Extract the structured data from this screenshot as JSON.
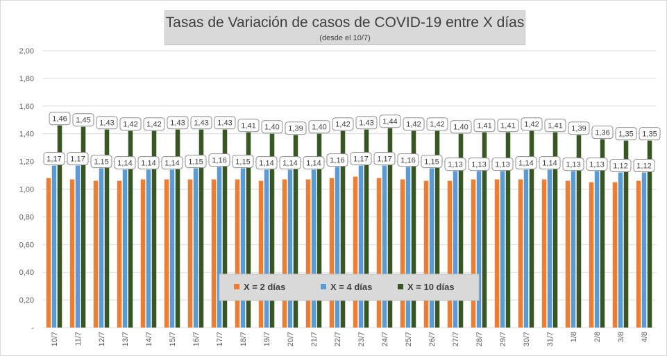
{
  "chart_data": {
    "type": "bar",
    "title": "Tasas de Variación de casos de COVID-19 entre X días",
    "subtitle": "(desde el 10/7)",
    "categories": [
      "10/7",
      "11/7",
      "12/7",
      "13/7",
      "14/7",
      "15/7",
      "16/7",
      "17/7",
      "18/7",
      "19/7",
      "20/7",
      "21/7",
      "22/7",
      "23/7",
      "24/7",
      "25/7",
      "26/7",
      "27/7",
      "28/7",
      "29/7",
      "30/7",
      "31/7",
      "1/8",
      "2/8",
      "3/8",
      "4/8"
    ],
    "ylim": [
      0,
      2
    ],
    "yticks": [
      "-",
      "0,20",
      "0,40",
      "0,60",
      "0,80",
      "1,00",
      "1,20",
      "1,40",
      "1,60",
      "1,80",
      "2,00"
    ],
    "grid": true,
    "legend_position": "center-bottom",
    "series": [
      {
        "name": "X = 2 días",
        "color": "#ed7d31",
        "values": [
          1.08,
          1.07,
          1.06,
          1.06,
          1.07,
          1.07,
          1.07,
          1.07,
          1.07,
          1.06,
          1.07,
          1.07,
          1.08,
          1.09,
          1.08,
          1.07,
          1.06,
          1.06,
          1.07,
          1.07,
          1.07,
          1.07,
          1.06,
          1.05,
          1.05,
          1.06
        ],
        "labels": []
      },
      {
        "name": "X = 4 días",
        "color": "#5b9bd5",
        "values": [
          1.17,
          1.17,
          1.15,
          1.14,
          1.14,
          1.14,
          1.15,
          1.16,
          1.15,
          1.14,
          1.14,
          1.14,
          1.16,
          1.17,
          1.17,
          1.16,
          1.15,
          1.13,
          1.13,
          1.13,
          1.14,
          1.14,
          1.13,
          1.13,
          1.12,
          1.12
        ],
        "labels": [
          "1,17",
          "1,17",
          "1,15",
          "1,14",
          "1,14",
          "1,14",
          "1,15",
          "1,16",
          "1,15",
          "1,14",
          "1,14",
          "1,14",
          "1,16",
          "1,17",
          "1,17",
          "1,16",
          "1,15",
          "1,13",
          "1,13",
          "1,13",
          "1,14",
          "1,14",
          "1,13",
          "1,13",
          "1,12",
          "1,12"
        ]
      },
      {
        "name": "X = 10 días",
        "color": "#375623",
        "values": [
          1.46,
          1.45,
          1.43,
          1.42,
          1.42,
          1.43,
          1.43,
          1.43,
          1.41,
          1.4,
          1.39,
          1.4,
          1.42,
          1.43,
          1.44,
          1.42,
          1.42,
          1.4,
          1.41,
          1.41,
          1.42,
          1.41,
          1.39,
          1.36,
          1.35,
          1.35
        ],
        "labels": [
          "1,46",
          "1,45",
          "1,43",
          "1,42",
          "1,42",
          "1,43",
          "1,43",
          "1,43",
          "1,41",
          "1,40",
          "1,39",
          "1,40",
          "1,42",
          "1,43",
          "1,44",
          "1,42",
          "1,42",
          "1,40",
          "1,41",
          "1,41",
          "1,42",
          "1,41",
          "1,39",
          "1,36",
          "1,35",
          "1,35"
        ]
      }
    ]
  }
}
